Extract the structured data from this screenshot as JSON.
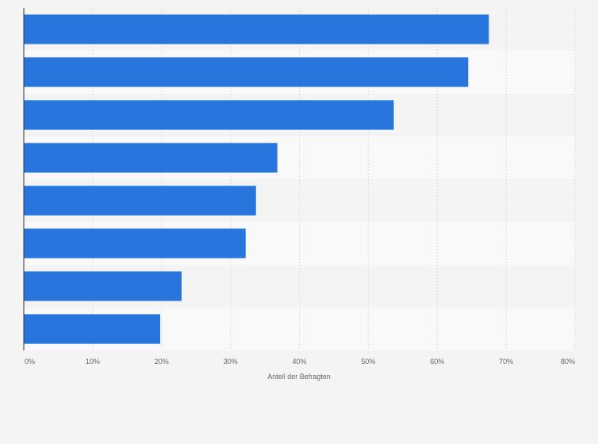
{
  "chart_data": {
    "type": "bar",
    "orientation": "horizontal",
    "categories": [
      "",
      "",
      "",
      "",
      "",
      "",
      "",
      ""
    ],
    "values": [
      67.5,
      64.5,
      53.7,
      36.8,
      33.7,
      32.2,
      22.9,
      19.8
    ],
    "title": "",
    "xlabel": "Anteil der Befragten",
    "ylabel": "",
    "xlim": [
      0,
      80
    ],
    "ticks": [
      "0%",
      "10%",
      "20%",
      "30%",
      "40%",
      "50%",
      "60%",
      "70%",
      "80%"
    ],
    "grid": true,
    "legend": "none",
    "colors": {
      "bar": "#2876dd",
      "band_a": "#f4f4f4",
      "band_b": "#f9f9f9",
      "grid": "#dcdcdc",
      "axis": "#333333"
    }
  }
}
